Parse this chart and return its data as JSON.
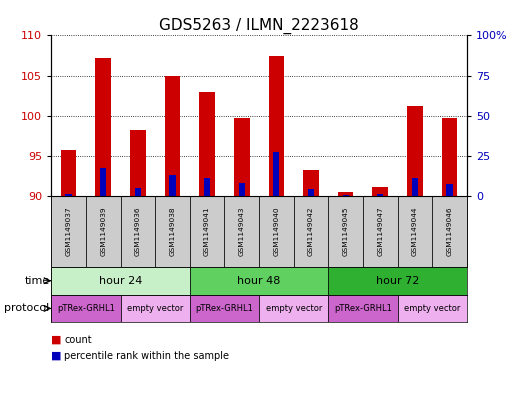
{
  "title": "GDS5263 / ILMN_2223618",
  "samples": [
    "GSM1149037",
    "GSM1149039",
    "GSM1149036",
    "GSM1149038",
    "GSM1149041",
    "GSM1149043",
    "GSM1149040",
    "GSM1149042",
    "GSM1149045",
    "GSM1149047",
    "GSM1149044",
    "GSM1149046"
  ],
  "count_values": [
    95.8,
    107.2,
    98.3,
    105.0,
    103.0,
    99.7,
    107.5,
    93.3,
    90.5,
    91.2,
    101.2,
    99.8
  ],
  "count_base": 90,
  "percentile_values": [
    1.5,
    17.5,
    5.0,
    13.0,
    11.5,
    8.5,
    27.5,
    4.5,
    1.0,
    1.5,
    11.5,
    7.5
  ],
  "ylim_left": [
    90,
    110
  ],
  "ylim_right": [
    0,
    100
  ],
  "yticks_left": [
    90,
    95,
    100,
    105,
    110
  ],
  "yticks_right": [
    0,
    25,
    50,
    75,
    100
  ],
  "ytick_labels_right": [
    "0",
    "25",
    "50",
    "75",
    "100%"
  ],
  "time_groups": [
    {
      "label": "hour 24",
      "start": 0,
      "end": 4,
      "color": "#c8f0c8"
    },
    {
      "label": "hour 48",
      "start": 4,
      "end": 8,
      "color": "#60d060"
    },
    {
      "label": "hour 72",
      "start": 8,
      "end": 12,
      "color": "#30b030"
    }
  ],
  "protocol_groups": [
    {
      "label": "pTRex-GRHL1",
      "start": 0,
      "end": 2,
      "color": "#cc66cc"
    },
    {
      "label": "empty vector",
      "start": 2,
      "end": 4,
      "color": "#eeb0ee"
    },
    {
      "label": "pTRex-GRHL1",
      "start": 4,
      "end": 6,
      "color": "#cc66cc"
    },
    {
      "label": "empty vector",
      "start": 6,
      "end": 8,
      "color": "#eeb0ee"
    },
    {
      "label": "pTRex-GRHL1",
      "start": 8,
      "end": 10,
      "color": "#cc66cc"
    },
    {
      "label": "empty vector",
      "start": 10,
      "end": 12,
      "color": "#eeb0ee"
    }
  ],
  "bar_color_red": "#cc0000",
  "bar_color_blue": "#0000bb",
  "bar_width": 0.45,
  "sample_area_color": "#cccccc",
  "axis_left_color": "#cc0000",
  "axis_right_color": "#0000bb",
  "title_fontsize": 11,
  "tick_fontsize": 8,
  "annot_fontsize": 8
}
